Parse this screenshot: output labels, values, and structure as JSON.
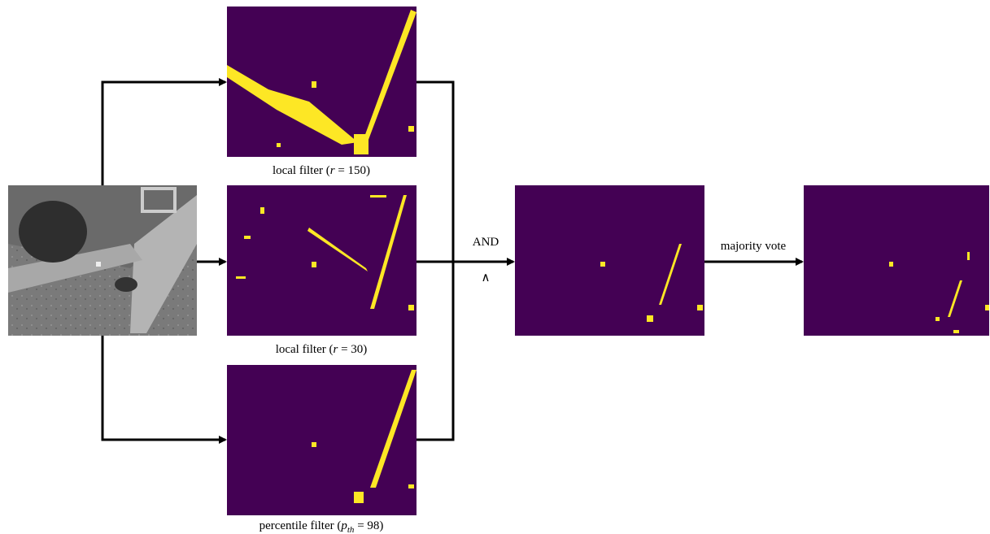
{
  "panels": {
    "local_150": {
      "prefix": "local filter (",
      "var": "r",
      "suffix": " = 150)"
    },
    "local_30": {
      "prefix": "local filter (",
      "var": "r",
      "suffix": " = 30)"
    },
    "percentile": {
      "prefix": "percentile filter (",
      "var": "p",
      "sub": "th",
      "suffix": " = 98)"
    }
  },
  "operators": {
    "and": "AND",
    "and_symbol": "∧",
    "vote": "majority vote"
  }
}
